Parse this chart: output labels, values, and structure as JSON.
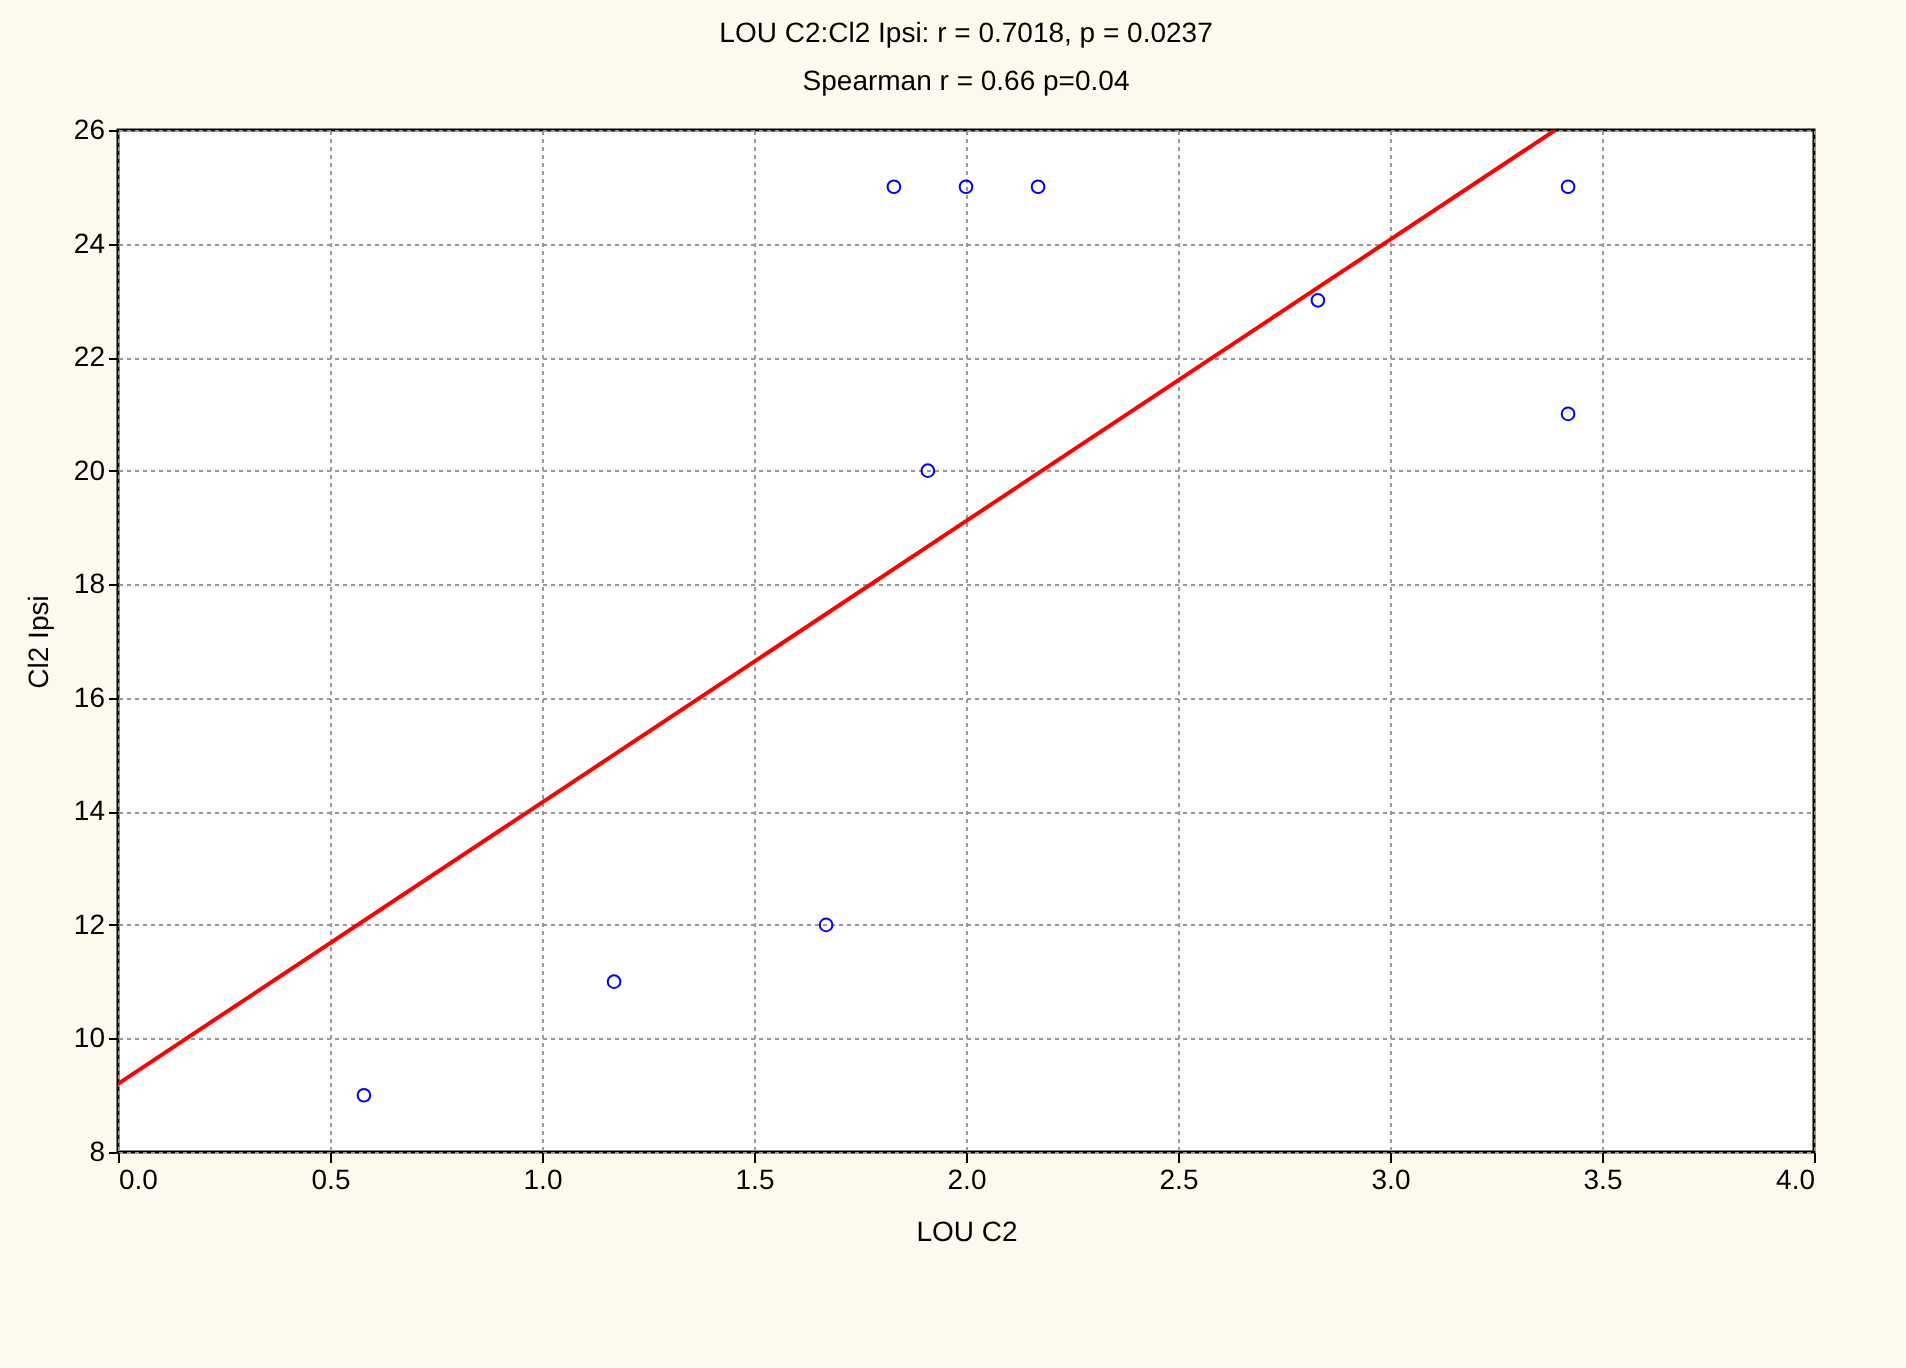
{
  "chart_data": {
    "type": "scatter",
    "title": "LOU C2:Cl2 Ipsi:    r = 0.7018, p = 0.0237",
    "subtitle": "Spearman r = 0.66 p=0.04",
    "xlabel": "LOU C2",
    "ylabel": "Cl2 Ipsi",
    "xlim": [
      0,
      4
    ],
    "xticks": [
      {
        "value": 0,
        "label": "0.0"
      },
      {
        "value": 0.5,
        "label": "0.5"
      },
      {
        "value": 1,
        "label": "1.0"
      },
      {
        "value": 1.5,
        "label": "1.5"
      },
      {
        "value": 2,
        "label": "2.0"
      },
      {
        "value": 2.5,
        "label": "2.5"
      },
      {
        "value": 3,
        "label": "3.0"
      },
      {
        "value": 3.5,
        "label": "3.5"
      },
      {
        "value": 4,
        "label": "4.0"
      }
    ],
    "ylim": [
      8,
      26
    ],
    "yticks": [
      8,
      10,
      12,
      14,
      16,
      18,
      20,
      22,
      24,
      26
    ],
    "grid": true,
    "series": [
      {
        "marker": "circle",
        "color": "#0000ff",
        "x": [
          0.58,
          1.17,
          1.67,
          1.83,
          1.91,
          2.0,
          2.17,
          2.83,
          3.42,
          3.42
        ],
        "values": [
          9,
          11,
          12,
          25,
          20,
          25,
          25,
          23,
          25,
          21
        ]
      },
      {
        "type": "line",
        "color": "#ff0000",
        "x": [
          0,
          3.39
        ],
        "values": [
          9.2,
          26
        ]
      }
    ]
  }
}
